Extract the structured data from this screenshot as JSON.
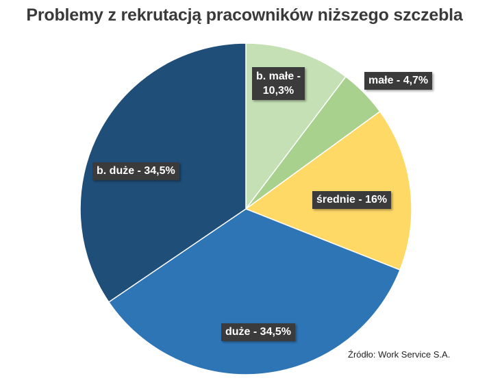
{
  "chart_data": {
    "type": "pie",
    "title": "Problemy z rekrutacją pracowników niższego szczebla",
    "slices": [
      {
        "label": "b. małe",
        "value": 10.3,
        "value_text": "10,3%",
        "color": "#c5e0b4"
      },
      {
        "label": "małe",
        "value": 4.7,
        "value_text": "4,7%",
        "color": "#a9d18e"
      },
      {
        "label": "średnie",
        "value": 16,
        "value_text": "16%",
        "color": "#ffd966"
      },
      {
        "label": "duże",
        "value": 34.5,
        "value_text": "34,5%",
        "color": "#2e75b6"
      },
      {
        "label": "b. duże",
        "value": 34.5,
        "value_text": "34,5%",
        "color": "#1f4e79"
      }
    ],
    "data_labels": [
      "b. małe -\n10,3%",
      "małe - 4,7%",
      "średnie - 16%",
      "duże - 34,5%",
      "b. duże - 34,5%"
    ]
  },
  "source": "Źródło: Work Service S.A."
}
